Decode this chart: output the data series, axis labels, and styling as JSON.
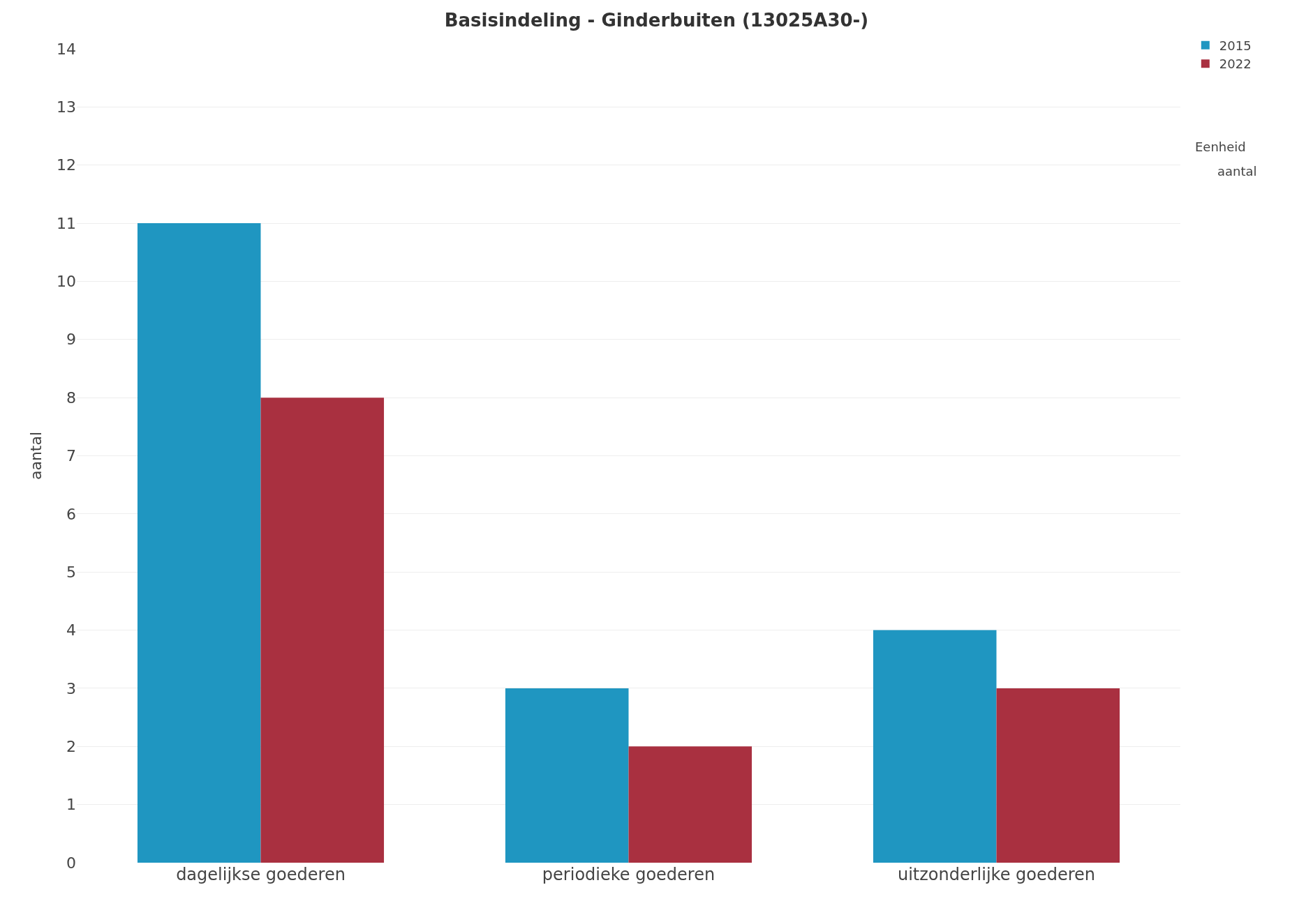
{
  "chart_data": {
    "type": "bar",
    "title": "Basisindeling - Ginderbuiten (13025A30-)",
    "ylabel": "aantal",
    "categories": [
      "dagelijkse goederen",
      "periodieke goederen",
      "uitzonderlijke goederen"
    ],
    "series": [
      {
        "name": "2015",
        "color": "#1f96c1",
        "values": [
          11,
          3,
          4
        ]
      },
      {
        "name": "2022",
        "color": "#a93040",
        "values": [
          8,
          2,
          3
        ]
      }
    ],
    "ylim": [
      0,
      14
    ],
    "yticks": [
      0,
      1,
      2,
      3,
      4,
      5,
      6,
      7,
      8,
      9,
      10,
      11,
      12,
      13,
      14
    ],
    "grid": "y",
    "legend": "top right",
    "annotations": [
      "Eenheid",
      "aantal"
    ]
  }
}
